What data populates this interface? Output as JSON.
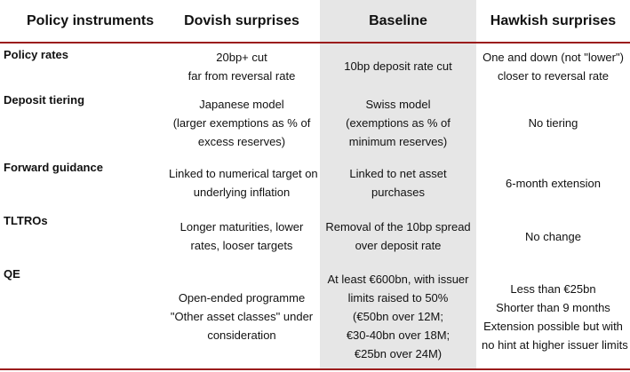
{
  "headers": [
    "Policy instruments",
    "Dovish surprises",
    "Baseline",
    "Hawkish surprises"
  ],
  "rows": [
    {
      "label": "Policy rates",
      "dovish": [
        "20bp+ cut",
        "far from reversal rate"
      ],
      "baseline": [
        "10bp deposit rate cut"
      ],
      "hawkish": [
        "One and down (not \"lower\")",
        "closer to reversal rate"
      ]
    },
    {
      "label": "Deposit tiering",
      "dovish": [
        "Japanese model",
        "(larger exemptions as % of",
        "excess reserves)"
      ],
      "baseline": [
        "Swiss model",
        "(exemptions as % of",
        "minimum reserves)"
      ],
      "hawkish": [
        "No tiering"
      ]
    },
    {
      "label": "Forward guidance",
      "dovish": [
        "Linked to numerical target on",
        "underlying inflation"
      ],
      "baseline": [
        "Linked to net asset",
        "purchases"
      ],
      "hawkish": [
        "6-month extension"
      ]
    },
    {
      "label": "TLTROs",
      "dovish": [
        "Longer maturities, lower",
        "rates, looser targets"
      ],
      "baseline": [
        "Removal of the 10bp spread",
        "over deposit rate"
      ],
      "hawkish": [
        "No change"
      ]
    },
    {
      "label": "QE",
      "dovish": [
        "Open-ended programme",
        "\"Other asset classes\" under",
        "consideration"
      ],
      "baseline": [
        "At least €600bn, with issuer",
        "limits raised to 50%",
        "(€50bn over 12M;",
        "€30-40bn over 18M;",
        "€25bn over 24M)"
      ],
      "hawkish": [
        "Less than €25bn",
        "Shorter than 9 months",
        "Extension possible but with",
        "no hint at higher issuer limits"
      ]
    }
  ]
}
